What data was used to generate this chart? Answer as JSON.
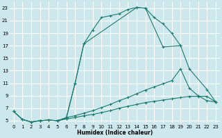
{
  "xlabel": "Humidex (Indice chaleur)",
  "bg_color": "#cce8ec",
  "grid_color": "#ffffff",
  "line_color": "#1a7a6e",
  "xlim": [
    -0.5,
    23.5
  ],
  "ylim": [
    4.5,
    24.0
  ],
  "xticks": [
    0,
    1,
    2,
    3,
    4,
    5,
    6,
    7,
    8,
    9,
    10,
    11,
    12,
    13,
    14,
    15,
    16,
    17,
    18,
    19,
    20,
    21,
    22,
    23
  ],
  "yticks": [
    5,
    7,
    9,
    11,
    13,
    15,
    17,
    19,
    21,
    23
  ],
  "line1_x": [
    0,
    1,
    2,
    3,
    4,
    5,
    6,
    7,
    8,
    9,
    10,
    11,
    12,
    13,
    14,
    15,
    16,
    17,
    18,
    19
  ],
  "line1_y": [
    6.5,
    5.2,
    4.8,
    5.0,
    5.1,
    5.0,
    5.3,
    11.0,
    17.3,
    19.5,
    21.5,
    21.8,
    22.1,
    22.8,
    23.1,
    23.0,
    21.5,
    20.5,
    19.0,
    17.0
  ],
  "line2_x": [
    0,
    1,
    2,
    3,
    4,
    5,
    6,
    7,
    8,
    9,
    10,
    11,
    12,
    13,
    14,
    15,
    16,
    17,
    18,
    19,
    20,
    21,
    22,
    23
  ],
  "line2_y": [
    6.5,
    5.2,
    4.8,
    5.0,
    5.1,
    5.0,
    5.5,
    5.8,
    6.2,
    6.6,
    7.1,
    7.6,
    8.2,
    8.7,
    9.3,
    9.9,
    10.4,
    10.9,
    11.4,
    13.3,
    10.2,
    9.0,
    8.2,
    8.0
  ],
  "line3_x": [
    0,
    1,
    2,
    3,
    4,
    5,
    6,
    7,
    8,
    9,
    10,
    11,
    12,
    13,
    14,
    15,
    16,
    17,
    18,
    19,
    20,
    21,
    22,
    23
  ],
  "line3_y": [
    6.5,
    5.2,
    4.8,
    5.0,
    5.1,
    5.0,
    5.3,
    5.5,
    5.8,
    6.0,
    6.3,
    6.6,
    7.0,
    7.3,
    7.6,
    7.9,
    8.1,
    8.3,
    8.5,
    8.7,
    8.9,
    8.9,
    8.9,
    8.0
  ],
  "line4_x": [
    5,
    6,
    7,
    8,
    14,
    15,
    17,
    19,
    20,
    22,
    23
  ],
  "line4_y": [
    5.0,
    5.5,
    11.0,
    17.3,
    23.1,
    23.0,
    16.8,
    17.0,
    13.3,
    10.0,
    8.0
  ]
}
